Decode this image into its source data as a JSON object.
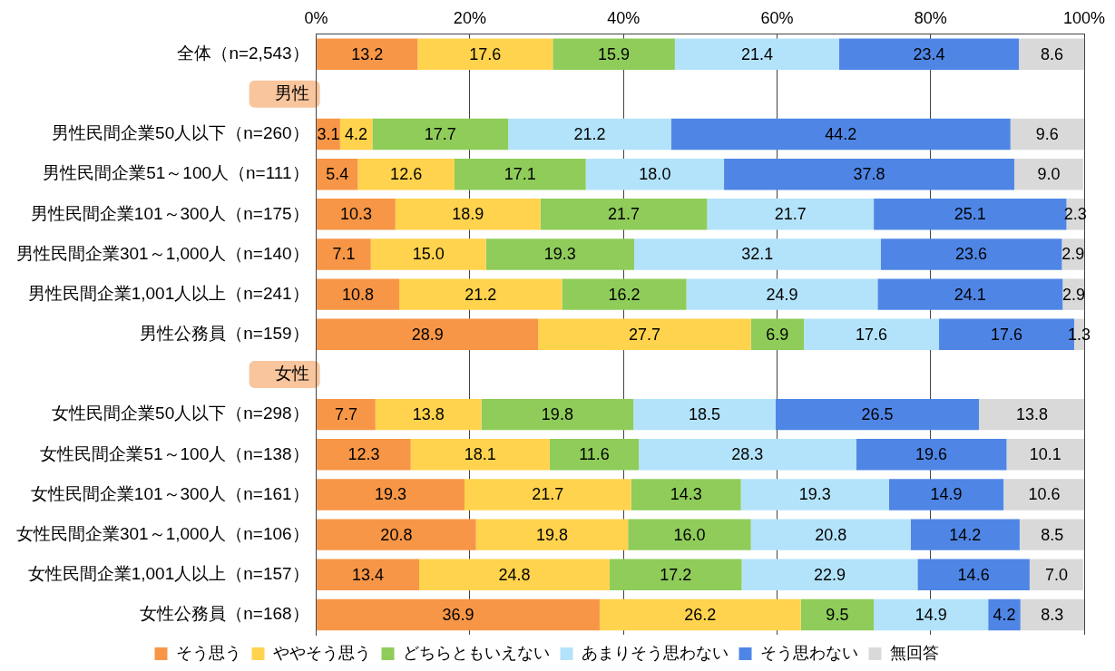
{
  "chart_data": {
    "type": "bar",
    "orientation": "horizontal",
    "stacked": true,
    "grid": "x",
    "legend": "bottom",
    "categories": [
      "全体（n=2,543）",
      "男性",
      "男性民間企業50人以下（n=260）",
      "男性民間企業51～100人（n=111）",
      "男性民間企業101～300人（n=175）",
      "男性民間企業301～1,000人（n=140）",
      "男性民間企業1,001人以上（n=241）",
      "男性公務員（n=159）",
      "女性",
      "女性民間企業50人以下（n=298）",
      "女性民間企業51～100人（n=138）",
      "女性民間企業101～300人（n=161）",
      "女性民間企業301～1,000人（n=106）",
      "女性民間企業1,001人以上（n=157）",
      "女性公務員（n=168）"
    ],
    "xlim": [
      0,
      100
    ],
    "xticks": [
      {
        "value": 0,
        "label": "0%"
      },
      {
        "value": 20,
        "label": "20%"
      },
      {
        "value": 40,
        "label": "40%"
      },
      {
        "value": 60,
        "label": "60%"
      },
      {
        "value": 80,
        "label": "80%"
      },
      {
        "value": 100,
        "label": "100%"
      }
    ],
    "series": [
      {
        "name": "そう思う",
        "color": "#f79646",
        "values": [
          13.2,
          null,
          3.1,
          5.4,
          10.3,
          7.1,
          10.8,
          28.9,
          null,
          7.7,
          12.3,
          19.3,
          20.8,
          13.4,
          36.9
        ],
        "value_labels": [
          "13.2",
          null,
          "3.1",
          "5.4",
          "10.3",
          "7.1",
          "10.8",
          "28.9",
          null,
          "7.7",
          "12.3",
          "19.3",
          "20.8",
          "13.4",
          "36.9"
        ]
      },
      {
        "name": "ややそう思う",
        "color": "#ffd34d",
        "values": [
          17.6,
          null,
          4.2,
          12.6,
          18.9,
          15.0,
          21.2,
          27.7,
          null,
          13.8,
          18.1,
          21.7,
          19.8,
          24.8,
          26.2
        ],
        "value_labels": [
          "17.6",
          null,
          "4.2",
          "12.6",
          "18.9",
          "15.0",
          "21.2",
          "27.7",
          null,
          "13.8",
          "18.1",
          "21.7",
          "19.8",
          "24.8",
          "26.2"
        ]
      },
      {
        "name": "どちらともいえない",
        "color": "#8fcc5a",
        "values": [
          15.9,
          null,
          17.7,
          17.1,
          21.7,
          19.3,
          16.2,
          6.9,
          null,
          19.8,
          11.6,
          14.3,
          16.0,
          17.2,
          9.5
        ],
        "value_labels": [
          "15.9",
          null,
          "17.7",
          "17.1",
          "21.7",
          "19.3",
          "16.2",
          "6.9",
          null,
          "19.8",
          "11.6",
          "14.3",
          "16.0",
          "17.2",
          "9.5"
        ]
      },
      {
        "name": "あまりそう思わない",
        "color": "#b3e3fa",
        "values": [
          21.4,
          null,
          21.2,
          18.0,
          21.7,
          32.1,
          24.9,
          17.6,
          null,
          18.5,
          28.3,
          19.3,
          20.8,
          22.9,
          14.9
        ],
        "value_labels": [
          "21.4",
          null,
          "21.2",
          "18.0",
          "21.7",
          "32.1",
          "24.9",
          "17.6",
          null,
          "18.5",
          "28.3",
          "19.3",
          "20.8",
          "22.9",
          "14.9"
        ]
      },
      {
        "name": "そう思わない",
        "color": "#4f86e6",
        "values": [
          23.4,
          null,
          44.2,
          37.8,
          25.1,
          23.6,
          24.1,
          17.6,
          null,
          26.5,
          19.6,
          14.9,
          14.2,
          14.6,
          4.2
        ],
        "value_labels": [
          "23.4",
          null,
          "44.2",
          "37.8",
          "25.1",
          "23.6",
          "24.1",
          "17.6",
          null,
          "26.5",
          "19.6",
          "14.9",
          "14.2",
          "14.6",
          "4.2"
        ]
      },
      {
        "name": "無回答",
        "color": "#d9d9d9",
        "values": [
          8.6,
          null,
          9.6,
          9.0,
          2.3,
          2.9,
          2.9,
          1.3,
          null,
          13.8,
          10.1,
          10.6,
          8.5,
          7.0,
          8.3
        ],
        "value_labels": [
          "8.6",
          null,
          "9.6",
          "9.0",
          "2.3",
          "2.9",
          "2.9",
          "1.3",
          null,
          "13.8",
          "10.1",
          "10.6",
          "8.5",
          "7.0",
          "8.3"
        ]
      }
    ]
  }
}
